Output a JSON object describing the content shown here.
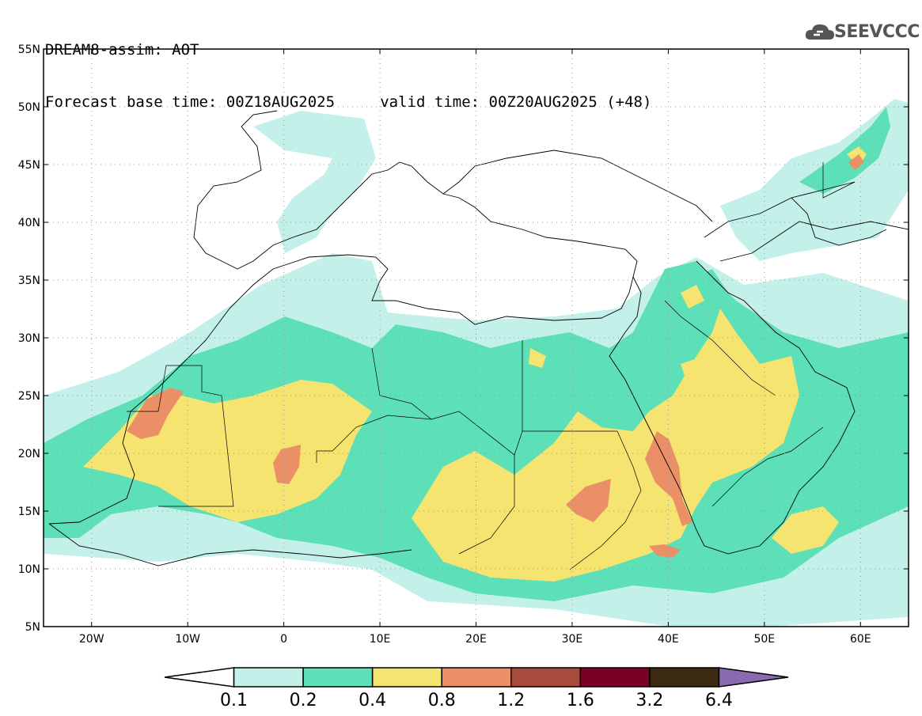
{
  "header": {
    "line1": "DREAM8-assim: AOT",
    "line2": "Forecast base time: 00Z18AUG2025     valid time: 00Z20AUG2025 (+48)"
  },
  "logo": {
    "text": "SEEVCCC",
    "icon": "cloud-icon"
  },
  "map": {
    "lon_range": [
      -25,
      65
    ],
    "lat_range": [
      5,
      55
    ],
    "lat_ticks": [
      {
        "value": 55,
        "label": "55N"
      },
      {
        "value": 50,
        "label": "50N"
      },
      {
        "value": 45,
        "label": "45N"
      },
      {
        "value": 40,
        "label": "40N"
      },
      {
        "value": 35,
        "label": "35N"
      },
      {
        "value": 30,
        "label": "30N"
      },
      {
        "value": 25,
        "label": "25N"
      },
      {
        "value": 20,
        "label": "20N"
      },
      {
        "value": 15,
        "label": "15N"
      },
      {
        "value": 10,
        "label": "10N"
      },
      {
        "value": 5,
        "label": "5N"
      }
    ],
    "lon_ticks": [
      {
        "value": -20,
        "label": "20W"
      },
      {
        "value": -10,
        "label": "10W"
      },
      {
        "value": 0,
        "label": "0"
      },
      {
        "value": 10,
        "label": "10E"
      },
      {
        "value": 20,
        "label": "20E"
      },
      {
        "value": 30,
        "label": "30E"
      },
      {
        "value": 40,
        "label": "40E"
      },
      {
        "value": 50,
        "label": "50E"
      },
      {
        "value": 60,
        "label": "60E"
      }
    ],
    "grid": true
  },
  "colorbar": {
    "colors": [
      "#ffffff",
      "#c4f0ea",
      "#5ddfb8",
      "#f5e470",
      "#ea8f66",
      "#a84a3c",
      "#7a0025",
      "#3d2a14",
      "#8a6ab0"
    ],
    "labels": [
      "0.1",
      "0.2",
      "0.4",
      "0.8",
      "1.2",
      "1.6",
      "3.2",
      "6.4"
    ]
  }
}
